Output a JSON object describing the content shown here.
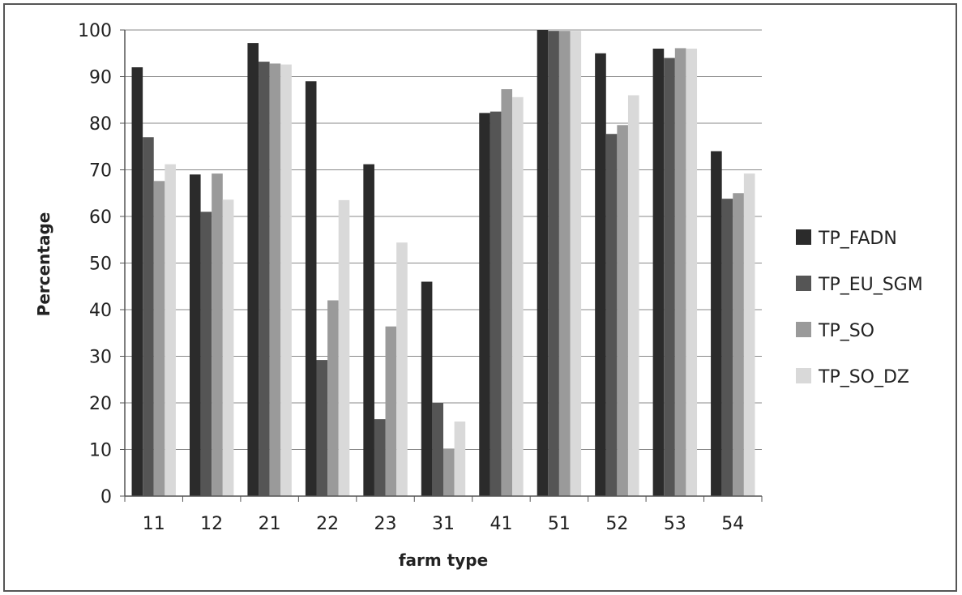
{
  "chart_data": {
    "type": "bar",
    "categories": [
      "11",
      "12",
      "21",
      "22",
      "23",
      "31",
      "41",
      "51",
      "52",
      "53",
      "54"
    ],
    "series": [
      {
        "name": "TP_FADN",
        "color": "#2b2b2b",
        "values": [
          92,
          69,
          97.2,
          89,
          71.2,
          46,
          82.2,
          100,
          95,
          96,
          74
        ]
      },
      {
        "name": "TP_EU_SGM",
        "color": "#555555",
        "values": [
          77,
          61,
          93.2,
          29.2,
          16.5,
          20,
          82.5,
          99.8,
          77.7,
          94,
          63.8
        ]
      },
      {
        "name": "TP_SO",
        "color": "#9a9a9a",
        "values": [
          67.6,
          69.2,
          92.8,
          42,
          36.4,
          10.2,
          87.3,
          99.8,
          79.6,
          96.1,
          65
        ]
      },
      {
        "name": "TP_SO_DZ",
        "color": "#d9d9d9",
        "values": [
          71.2,
          63.6,
          92.6,
          63.5,
          54.4,
          16,
          85.6,
          99.8,
          86,
          96,
          69.2
        ]
      }
    ],
    "xlabel": "farm type",
    "ylabel": "Percentage",
    "ylim": [
      0,
      100
    ],
    "yticks": [
      "0",
      "10",
      "20",
      "30",
      "40",
      "50",
      "60",
      "70",
      "80",
      "90",
      "100"
    ],
    "grid": "horizontal",
    "legend_position": "right"
  }
}
